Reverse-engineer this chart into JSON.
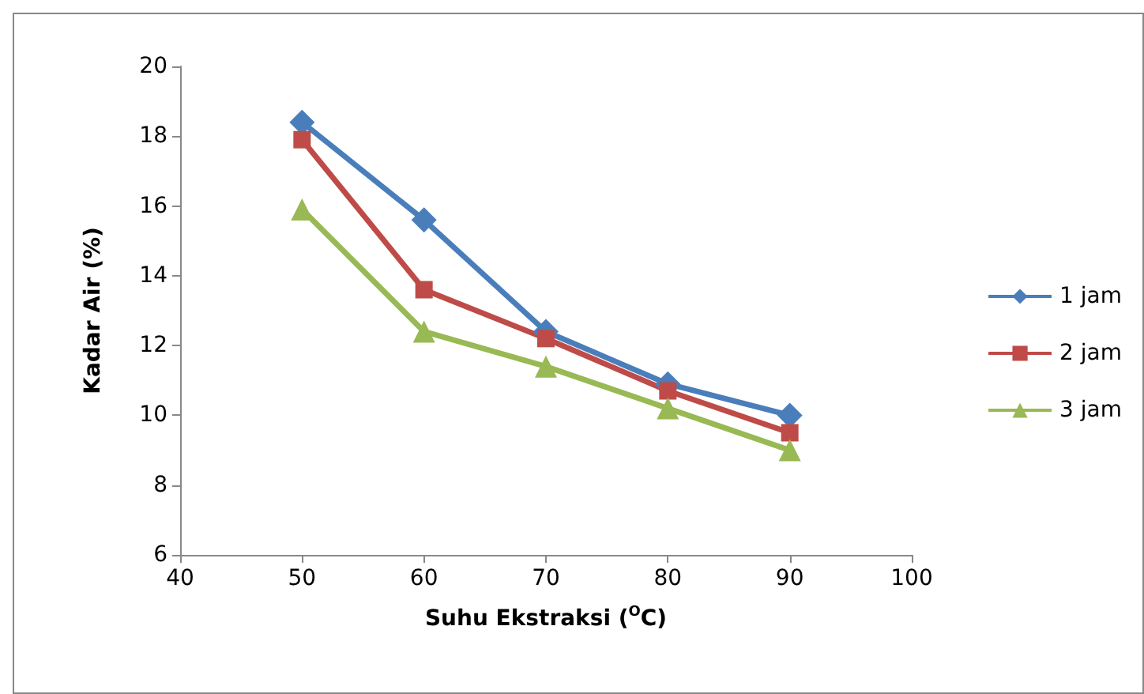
{
  "chart_data": {
    "type": "line",
    "xlabel": "Suhu Ekstraksi ($^{O}$C)",
    "ylabel": "Kadar Air (%)",
    "x": [
      50,
      60,
      70,
      80,
      90
    ],
    "series": [
      {
        "name": "1 jam",
        "color": "#4a7ebb",
        "marker": "diamond",
        "values": [
          18.4,
          15.6,
          12.4,
          10.9,
          10.0
        ]
      },
      {
        "name": "2 jam",
        "color": "#be4b48",
        "marker": "square",
        "values": [
          17.9,
          13.6,
          12.2,
          10.7,
          9.5
        ]
      },
      {
        "name": "3 jam",
        "color": "#98b954",
        "marker": "triangle",
        "values": [
          15.9,
          12.4,
          11.4,
          10.2,
          9.0
        ]
      }
    ],
    "xlim": [
      40,
      100
    ],
    "xticks": [
      40,
      50,
      60,
      70,
      80,
      90,
      100
    ],
    "ylim": [
      6,
      20
    ],
    "yticks": [
      6,
      8,
      10,
      12,
      14,
      16,
      18,
      20
    ],
    "grid": false,
    "legend": "right",
    "line_style": "solid"
  }
}
